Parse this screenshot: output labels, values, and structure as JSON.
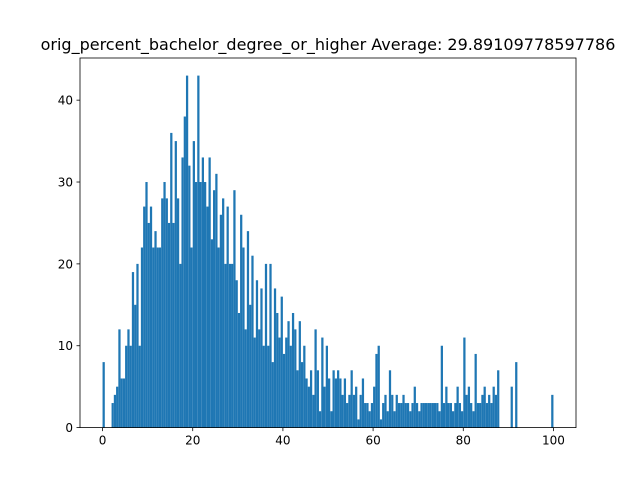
{
  "chart_data": {
    "type": "bar",
    "title": "orig_percent_bachelor_degree_or_higher  Average: 29.89109778597786",
    "xlabel": "",
    "ylabel": "",
    "xlim": [
      -5,
      105
    ],
    "ylim": [
      0,
      45.15
    ],
    "x_ticks": [
      0,
      20,
      40,
      60,
      80,
      100
    ],
    "y_ticks": [
      0,
      10,
      20,
      30,
      40
    ],
    "bins": {
      "start": 0,
      "width": 0.5,
      "count": 200
    },
    "bar_color": "#1f77b4",
    "grid": false,
    "legend": "none",
    "bin_starts": [
      0.0,
      2.0,
      2.5,
      3.0,
      3.5,
      4.0,
      4.5,
      5.0,
      5.5,
      6.0,
      6.5,
      7.0,
      7.5,
      8.0,
      8.5,
      9.0,
      9.5,
      10.0,
      10.5,
      11.0,
      11.5,
      12.0,
      12.5,
      13.0,
      13.5,
      14.0,
      14.5,
      15.0,
      15.5,
      16.0,
      16.5,
      17.0,
      17.5,
      18.0,
      18.5,
      19.0,
      19.5,
      20.0,
      20.5,
      21.0,
      21.5,
      22.0,
      22.5,
      23.0,
      23.5,
      24.0,
      24.5,
      25.0,
      25.5,
      26.0,
      26.5,
      27.0,
      27.5,
      28.0,
      28.5,
      29.0,
      29.5,
      30.0,
      30.5,
      31.0,
      31.5,
      32.0,
      32.5,
      33.0,
      33.5,
      34.0,
      34.5,
      35.0,
      35.5,
      36.0,
      36.5,
      37.0,
      37.5,
      38.0,
      38.5,
      39.0,
      39.5,
      40.0,
      40.5,
      41.0,
      41.5,
      42.0,
      42.5,
      43.0,
      43.5,
      44.0,
      44.5,
      45.0,
      45.5,
      46.0,
      46.5,
      47.0,
      47.5,
      48.0,
      48.5,
      49.0,
      49.5,
      50.0,
      50.5,
      51.0,
      51.5,
      52.0,
      52.5,
      53.0,
      53.5,
      54.0,
      54.5,
      55.0,
      55.5,
      56.0,
      56.5,
      57.0,
      57.5,
      58.0,
      58.5,
      59.0,
      59.5,
      60.0,
      60.5,
      61.0,
      61.5,
      62.0,
      62.5,
      63.0,
      63.5,
      64.0,
      64.5,
      65.0,
      65.5,
      66.0,
      66.5,
      67.0,
      67.5,
      68.0,
      68.5,
      69.0,
      69.5,
      70.0,
      70.5,
      71.0,
      71.5,
      72.0,
      72.5,
      73.0,
      73.5,
      74.0,
      74.5,
      75.0,
      75.5,
      76.0,
      76.5,
      77.0,
      77.5,
      78.0,
      78.5,
      79.0,
      79.5,
      80.0,
      80.5,
      81.0,
      81.5,
      82.0,
      82.5,
      83.0,
      83.5,
      84.0,
      84.5,
      85.0,
      85.5,
      86.0,
      86.5,
      87.0,
      87.5,
      90.5,
      91.5,
      99.5
    ],
    "counts": [
      8,
      3,
      4,
      5,
      12,
      6,
      6,
      10,
      12,
      10,
      19,
      15,
      20,
      10,
      22,
      27,
      30,
      25,
      27,
      22,
      24,
      22,
      22,
      28,
      30,
      28,
      25,
      36,
      25,
      35,
      28,
      20,
      33,
      38,
      43,
      32,
      22,
      35,
      30,
      43,
      30,
      33,
      30,
      27,
      33,
      23,
      29,
      31,
      22,
      26,
      28,
      20,
      27,
      20,
      20,
      29,
      18,
      14,
      26,
      22,
      12,
      24,
      15,
      21,
      11,
      18,
      12,
      17,
      10,
      20,
      10,
      20,
      8,
      17,
      14,
      11,
      16,
      9,
      11,
      13,
      10,
      14,
      12,
      7,
      13,
      8,
      10,
      6,
      5,
      7,
      4,
      12,
      7,
      2,
      11,
      5,
      10,
      6,
      2,
      7,
      6,
      7,
      6,
      4,
      6,
      3,
      4,
      7,
      4,
      5,
      1,
      4,
      6,
      3,
      3,
      2,
      3,
      5,
      9,
      10,
      1,
      3,
      4,
      2,
      7,
      4,
      2,
      4,
      3,
      3,
      4,
      3,
      3,
      2,
      3,
      5,
      3,
      2,
      3,
      3,
      3,
      3,
      3,
      3,
      3,
      3,
      2,
      10,
      3,
      5,
      3,
      3,
      2,
      3,
      5,
      3,
      2,
      11,
      4,
      5,
      3,
      2,
      9,
      3,
      3,
      4,
      5,
      3,
      4,
      3,
      5,
      4,
      7,
      5,
      8,
      4,
      3,
      4,
      2,
      1,
      1,
      2,
      2,
      5
    ]
  }
}
